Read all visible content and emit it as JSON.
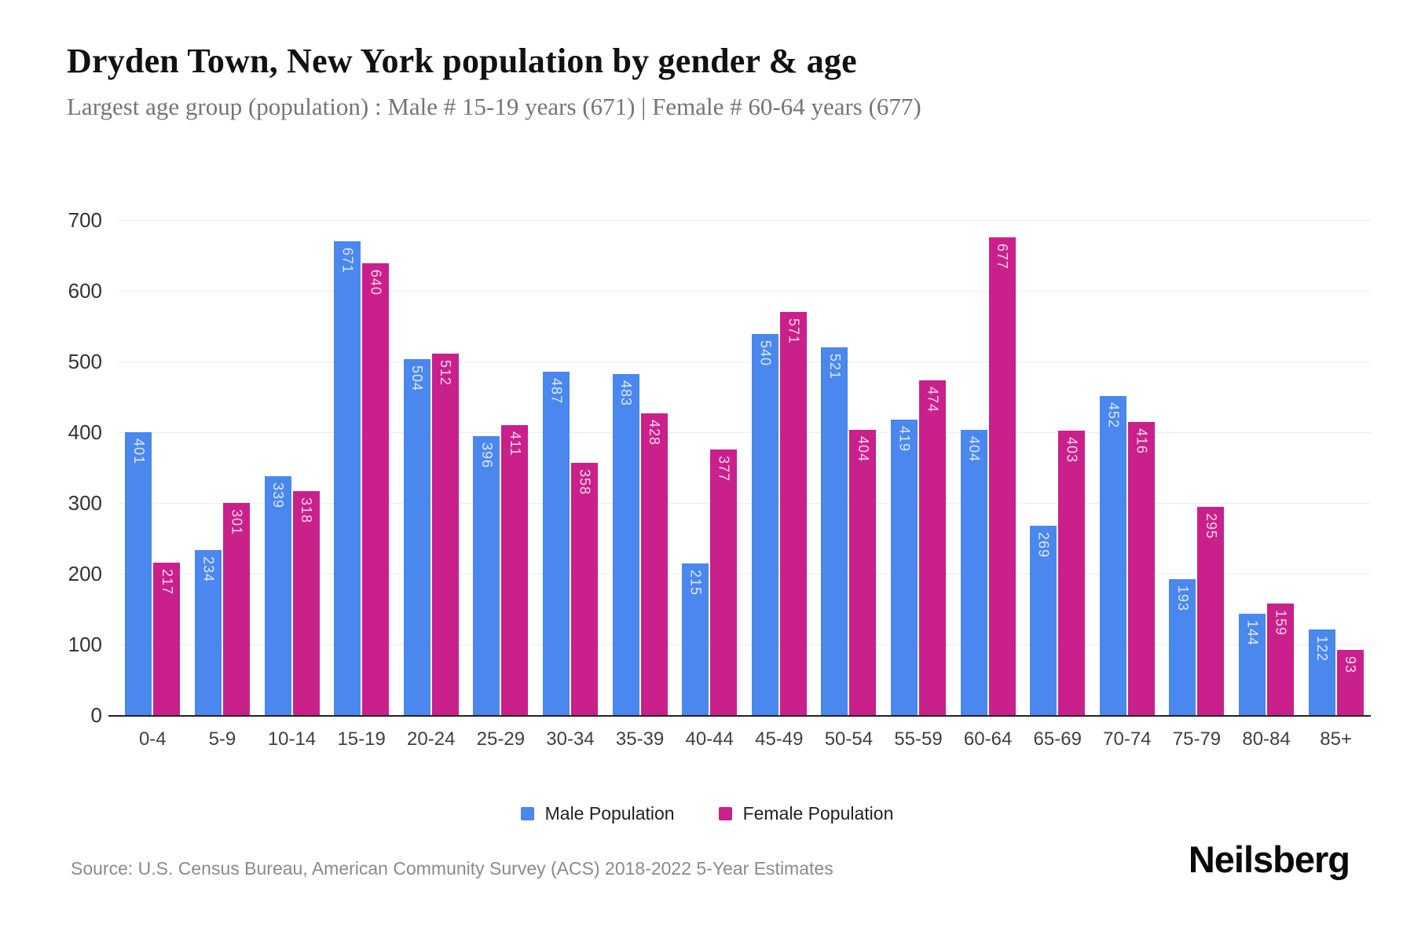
{
  "header": {
    "title": "Dryden Town, New York population by gender & age",
    "subtitle": "Largest age group (population) : Male # 15-19 years (671) | Female # 60-64 years (677)"
  },
  "chart_data": {
    "type": "bar",
    "title": "Dryden Town, New York population by gender & age",
    "categories": [
      "0-4",
      "5-9",
      "10-14",
      "15-19",
      "20-24",
      "25-29",
      "30-34",
      "35-39",
      "40-44",
      "45-49",
      "50-54",
      "55-59",
      "60-64",
      "65-69",
      "70-74",
      "75-79",
      "80-84",
      "85+"
    ],
    "series": [
      {
        "name": "Male Population",
        "color": "#4a87ee",
        "values": [
          401,
          234,
          339,
          671,
          504,
          396,
          487,
          483,
          215,
          540,
          521,
          419,
          404,
          269,
          452,
          193,
          144,
          122
        ]
      },
      {
        "name": "Female Population",
        "color": "#c9208b",
        "values": [
          217,
          301,
          318,
          640,
          512,
          411,
          358,
          428,
          377,
          571,
          404,
          474,
          677,
          403,
          416,
          295,
          159,
          93
        ]
      }
    ],
    "xlabel": "",
    "ylabel": "",
    "ylim": [
      0,
      700
    ],
    "yticks": [
      0,
      100,
      200,
      300,
      400,
      500,
      600,
      700
    ],
    "grid": true,
    "legend_position": "bottom",
    "bar_value_labels": true
  },
  "legend": {
    "items": [
      {
        "label": "Male Population",
        "color": "#4a87ee"
      },
      {
        "label": "Female Population",
        "color": "#c9208b"
      }
    ]
  },
  "footer": {
    "source": "Source: U.S. Census Bureau, American Community Survey (ACS) 2018-2022 5-Year Estimates",
    "brand": "Neilsberg"
  }
}
